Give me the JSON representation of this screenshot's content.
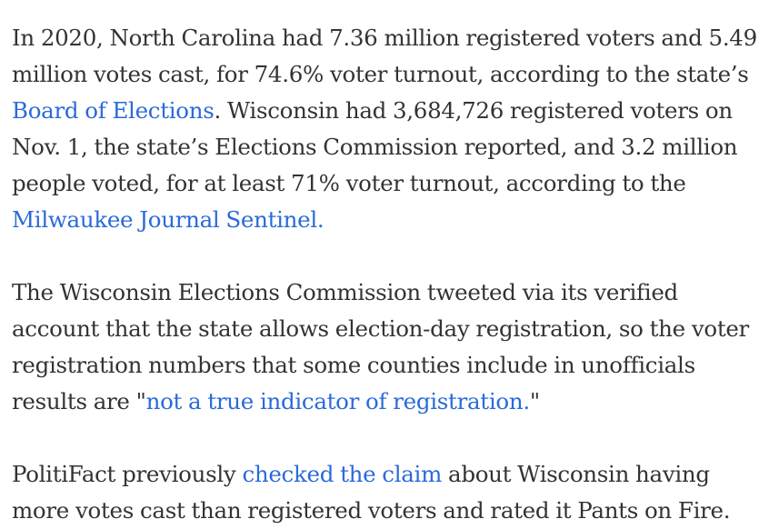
{
  "paragraphs": [
    {
      "segments": [
        {
          "type": "text",
          "value": "In 2020, North Carolina had 7.36 million registered voters and 5.49 million votes cast, for 74.6% voter turnout, according to the state’s "
        },
        {
          "type": "link",
          "value": "Board of Elections",
          "name": "board-of-elections-link"
        },
        {
          "type": "text",
          "value": ". Wisconsin had 3,684,726 registered voters on Nov. 1, the state’s Elections Commission reported, and 3.2 million people voted, for at least 71% voter turnout, according to the "
        },
        {
          "type": "link",
          "value": "Milwaukee Journal Sentinel.",
          "name": "milwaukee-journal-sentinel-link"
        }
      ]
    },
    {
      "segments": [
        {
          "type": "text",
          "value": "The Wisconsin Elections Commission tweeted via its verified account that the state allows election-day registration, so the voter registration numbers that some counties include in unofficials results are \""
        },
        {
          "type": "link",
          "value": "not a true indicator of registration.",
          "name": "not-a-true-indicator-link"
        },
        {
          "type": "text",
          "value": "\""
        }
      ]
    },
    {
      "segments": [
        {
          "type": "text",
          "value": "PolitiFact previously "
        },
        {
          "type": "link",
          "value": "checked the claim",
          "name": "checked-the-claim-link"
        },
        {
          "type": "text",
          "value": " about Wisconsin having more votes cast than registered voters and rated it Pants on Fire."
        }
      ]
    }
  ],
  "colors": {
    "body_text": "#333333",
    "link": "#2a6ad8",
    "background": "#ffffff"
  }
}
